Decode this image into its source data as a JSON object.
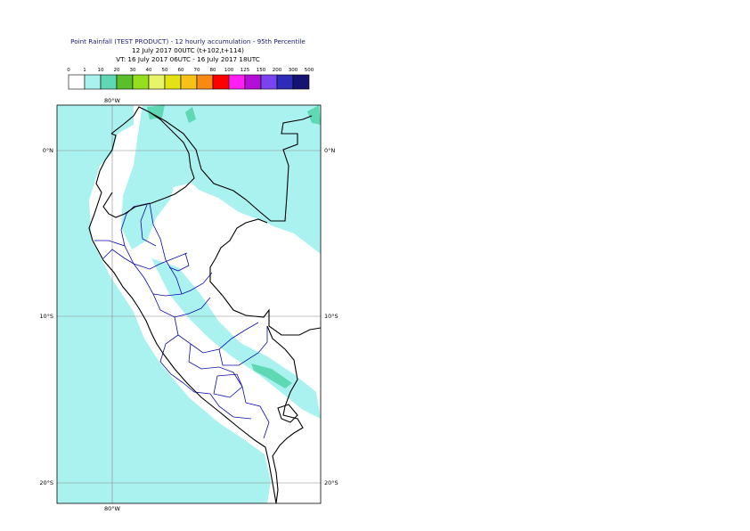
{
  "header": {
    "title": "Point Rainfall (TEST PRODUCT) - 12 hourly accumulation - 95th Percentile",
    "base_time": "12 July 2017 00UTC (t+102,t+114)",
    "valid_time": "VT: 16 July 2017 06UTC - 16 July 2017 18UTC"
  },
  "legend": {
    "thresholds": [
      "0",
      "1",
      "10",
      "20",
      "30",
      "40",
      "50",
      "60",
      "70",
      "80",
      "100",
      "125",
      "150",
      "200",
      "300",
      "500"
    ],
    "colors": [
      "#ffffff",
      "#aaf2f0",
      "#5fd9b4",
      "#5bbf2a",
      "#95e01e",
      "#e8f56a",
      "#e2e215",
      "#f6c21a",
      "#f88a14",
      "#ff0000",
      "#ff1ff5",
      "#b30fd6",
      "#7a43f0",
      "#2c2cb8",
      "#141470"
    ]
  },
  "map": {
    "lon_labels": [
      "80°W",
      "80°W"
    ],
    "lat_labels": [
      {
        "text": "0°N"
      },
      {
        "text": "10°S"
      },
      {
        "text": "20°S"
      }
    ],
    "colors": {
      "rain_light": "#aaf2f0",
      "rain_moderate": "#5fd9b4",
      "country_border": "#000000",
      "admin_border": "#0a0aa8",
      "grid": "#888888"
    }
  }
}
